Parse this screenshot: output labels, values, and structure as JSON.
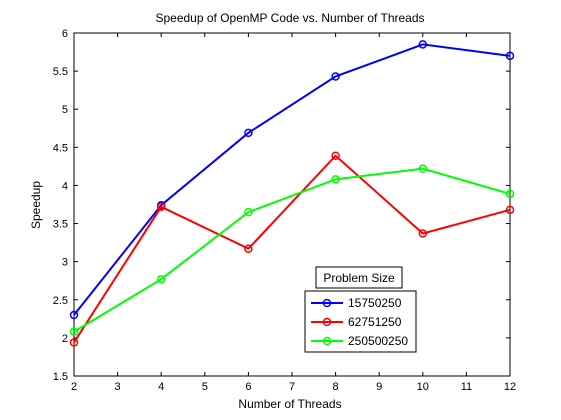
{
  "chart_data": {
    "type": "line",
    "title": "Speedup of OpenMP Code vs. Number of Threads",
    "xlabel": "Number of Threads",
    "ylabel": "Speedup",
    "xlim": [
      2,
      12
    ],
    "ylim": [
      1.5,
      6
    ],
    "xticks": [
      "2",
      "3",
      "4",
      "5",
      "6",
      "7",
      "8",
      "9",
      "10",
      "11",
      "12"
    ],
    "yticks": [
      "1.5",
      "2",
      "2.5",
      "3",
      "3.5",
      "4",
      "4.5",
      "5",
      "5.5",
      "6"
    ],
    "grid": false,
    "legend": {
      "title": "Problem Size",
      "placement": "lower-right-inside"
    },
    "x": [
      2,
      4,
      6,
      8,
      10,
      12
    ],
    "series": [
      {
        "name": "15750250",
        "color": "#0000ff",
        "marker": "circle",
        "values": [
          2.3,
          3.74,
          4.69,
          5.43,
          5.85,
          5.7
        ]
      },
      {
        "name": "62751250",
        "color": "#ff0000",
        "marker": "circle",
        "values": [
          1.94,
          3.72,
          3.17,
          4.39,
          3.37,
          3.68
        ]
      },
      {
        "name": "250500250",
        "color": "#00ff00",
        "marker": "circle",
        "values": [
          2.08,
          2.77,
          3.65,
          4.08,
          4.22,
          3.89
        ]
      }
    ]
  }
}
